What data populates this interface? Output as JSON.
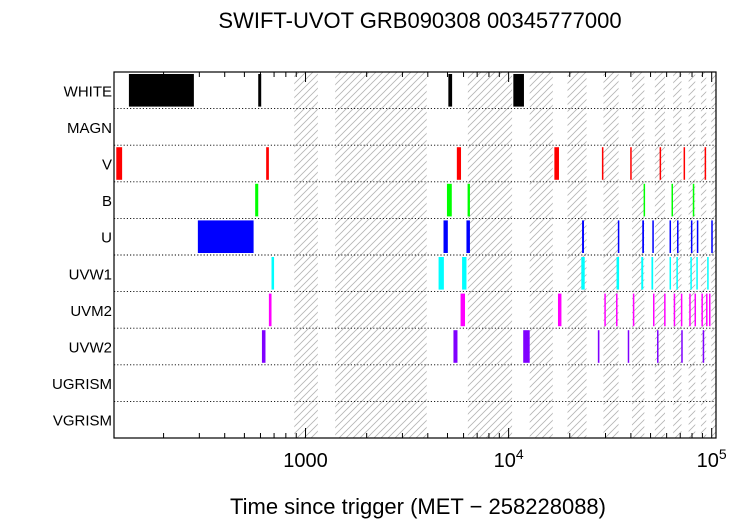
{
  "chart_data": {
    "type": "timeline",
    "title": "SWIFT-UVOT GRB090308 00345777000",
    "xlabel": "Time since trigger (MET − 258228088)",
    "x_scale": "log",
    "xlim": [
      114,
      105000
    ],
    "x_ticks": [
      {
        "value": 1000,
        "label": "1000"
      },
      {
        "value": 10000,
        "label": "10",
        "sup": "4"
      },
      {
        "value": 100000,
        "label": "10",
        "sup": "5"
      }
    ],
    "rows": [
      "WHITE",
      "MAGN",
      "V",
      "B",
      "U",
      "UVW1",
      "UVM2",
      "UVW2",
      "UGRISM",
      "VGRISM"
    ],
    "hatched_intervals": [
      [
        880,
        1150
      ],
      [
        1400,
        3950
      ],
      [
        6300,
        10400
      ],
      [
        12700,
        16500
      ],
      [
        19500,
        24200
      ],
      [
        29300,
        34800
      ],
      [
        40500,
        46600
      ],
      [
        52500,
        58900
      ],
      [
        64600,
        71000
      ],
      [
        77000,
        83000
      ],
      [
        88500,
        94000
      ],
      [
        99500,
        105000
      ]
    ],
    "exposures": [
      {
        "filter": "WHITE",
        "start": 135,
        "end": 282,
        "color": "#000000"
      },
      {
        "filter": "WHITE",
        "start": 585,
        "end": 605,
        "color": "#000000"
      },
      {
        "filter": "WHITE",
        "start": 5050,
        "end": 5270,
        "color": "#000000"
      },
      {
        "filter": "WHITE",
        "start": 10550,
        "end": 11900,
        "color": "#000000"
      },
      {
        "filter": "V",
        "start": 117,
        "end": 125,
        "color": "#ff0000"
      },
      {
        "filter": "V",
        "start": 640,
        "end": 660,
        "color": "#ff0000"
      },
      {
        "filter": "V",
        "start": 5560,
        "end": 5830,
        "color": "#ff0000"
      },
      {
        "filter": "V",
        "start": 16800,
        "end": 17700,
        "color": "#ff0000"
      },
      {
        "filter": "V",
        "start": 28800,
        "end": 29300,
        "color": "#ff0000"
      },
      {
        "filter": "V",
        "start": 39700,
        "end": 40200,
        "color": "#ff0000"
      },
      {
        "filter": "V",
        "start": 55400,
        "end": 55900,
        "color": "#ff0000"
      },
      {
        "filter": "V",
        "start": 72700,
        "end": 73400,
        "color": "#ff0000"
      },
      {
        "filter": "V",
        "start": 92300,
        "end": 93200,
        "color": "#ff0000"
      },
      {
        "filter": "B",
        "start": 565,
        "end": 585,
        "color": "#00ff00"
      },
      {
        "filter": "B",
        "start": 4970,
        "end": 5250,
        "color": "#00ff00"
      },
      {
        "filter": "B",
        "start": 6280,
        "end": 6450,
        "color": "#00ff00"
      },
      {
        "filter": "B",
        "start": 46200,
        "end": 46800,
        "color": "#00ff00"
      },
      {
        "filter": "B",
        "start": 63400,
        "end": 64000,
        "color": "#00ff00"
      },
      {
        "filter": "B",
        "start": 80700,
        "end": 81500,
        "color": "#00ff00"
      },
      {
        "filter": "U",
        "start": 295,
        "end": 555,
        "color": "#0000ff"
      },
      {
        "filter": "U",
        "start": 4780,
        "end": 5020,
        "color": "#0000ff"
      },
      {
        "filter": "U",
        "start": 6200,
        "end": 6450,
        "color": "#0000ff"
      },
      {
        "filter": "U",
        "start": 23000,
        "end": 23500,
        "color": "#0000ff"
      },
      {
        "filter": "U",
        "start": 34500,
        "end": 34900,
        "color": "#0000ff"
      },
      {
        "filter": "U",
        "start": 45500,
        "end": 46400,
        "color": "#0000ff"
      },
      {
        "filter": "U",
        "start": 51000,
        "end": 51600,
        "color": "#0000ff"
      },
      {
        "filter": "U",
        "start": 62000,
        "end": 62800,
        "color": "#0000ff"
      },
      {
        "filter": "U",
        "start": 67500,
        "end": 68300,
        "color": "#0000ff"
      },
      {
        "filter": "U",
        "start": 79000,
        "end": 79800,
        "color": "#0000ff"
      },
      {
        "filter": "U",
        "start": 84500,
        "end": 85400,
        "color": "#0000ff"
      },
      {
        "filter": "U",
        "start": 99500,
        "end": 101000,
        "color": "#0000ff"
      },
      {
        "filter": "UVW1",
        "start": 680,
        "end": 700,
        "color": "#00ffff"
      },
      {
        "filter": "UVW1",
        "start": 4520,
        "end": 4800,
        "color": "#00ffff"
      },
      {
        "filter": "UVW1",
        "start": 5900,
        "end": 6200,
        "color": "#00ffff"
      },
      {
        "filter": "UVW1",
        "start": 22800,
        "end": 23700,
        "color": "#00ffff"
      },
      {
        "filter": "UVW1",
        "start": 34000,
        "end": 35000,
        "color": "#00ffff"
      },
      {
        "filter": "UVW1",
        "start": 45000,
        "end": 46000,
        "color": "#00ffff"
      },
      {
        "filter": "UVW1",
        "start": 50500,
        "end": 51500,
        "color": "#00ffff"
      },
      {
        "filter": "UVW1",
        "start": 62000,
        "end": 63000,
        "color": "#00ffff"
      },
      {
        "filter": "UVW1",
        "start": 67000,
        "end": 68000,
        "color": "#00ffff"
      },
      {
        "filter": "UVW1",
        "start": 78500,
        "end": 79500,
        "color": "#00ffff"
      },
      {
        "filter": "UVW1",
        "start": 84000,
        "end": 85000,
        "color": "#00ffff"
      },
      {
        "filter": "UVW1",
        "start": 95000,
        "end": 96500,
        "color": "#00ffff"
      },
      {
        "filter": "UVM2",
        "start": 660,
        "end": 680,
        "color": "#ff00ff"
      },
      {
        "filter": "UVM2",
        "start": 5800,
        "end": 6100,
        "color": "#ff00ff"
      },
      {
        "filter": "UVM2",
        "start": 17500,
        "end": 18200,
        "color": "#ff00ff"
      },
      {
        "filter": "UVM2",
        "start": 29600,
        "end": 30100,
        "color": "#ff00ff"
      },
      {
        "filter": "UVM2",
        "start": 33800,
        "end": 34300,
        "color": "#ff00ff"
      },
      {
        "filter": "UVM2",
        "start": 40900,
        "end": 41500,
        "color": "#ff00ff"
      },
      {
        "filter": "UVM2",
        "start": 51400,
        "end": 52200,
        "color": "#ff00ff"
      },
      {
        "filter": "UVM2",
        "start": 58300,
        "end": 59000,
        "color": "#ff00ff"
      },
      {
        "filter": "UVM2",
        "start": 65000,
        "end": 65800,
        "color": "#ff00ff"
      },
      {
        "filter": "UVM2",
        "start": 70500,
        "end": 71300,
        "color": "#ff00ff"
      },
      {
        "filter": "UVM2",
        "start": 77500,
        "end": 78300,
        "color": "#ff00ff"
      },
      {
        "filter": "UVM2",
        "start": 82300,
        "end": 83300,
        "color": "#ff00ff"
      },
      {
        "filter": "UVM2",
        "start": 89000,
        "end": 90000,
        "color": "#ff00ff"
      },
      {
        "filter": "UVM2",
        "start": 93800,
        "end": 94800,
        "color": "#ff00ff"
      },
      {
        "filter": "UVM2",
        "start": 97000,
        "end": 98000,
        "color": "#ff00ff"
      },
      {
        "filter": "UVW2",
        "start": 610,
        "end": 635,
        "color": "#8000ff"
      },
      {
        "filter": "UVW2",
        "start": 5350,
        "end": 5600,
        "color": "#8000ff"
      },
      {
        "filter": "UVW2",
        "start": 11800,
        "end": 12700,
        "color": "#8000ff"
      },
      {
        "filter": "UVW2",
        "start": 27500,
        "end": 28000,
        "color": "#8000ff"
      },
      {
        "filter": "UVW2",
        "start": 38600,
        "end": 39200,
        "color": "#8000ff"
      },
      {
        "filter": "UVW2",
        "start": 53800,
        "end": 54600,
        "color": "#8000ff"
      },
      {
        "filter": "UVW2",
        "start": 70800,
        "end": 71600,
        "color": "#8000ff"
      },
      {
        "filter": "UVW2",
        "start": 90300,
        "end": 91300,
        "color": "#8000ff"
      }
    ]
  }
}
